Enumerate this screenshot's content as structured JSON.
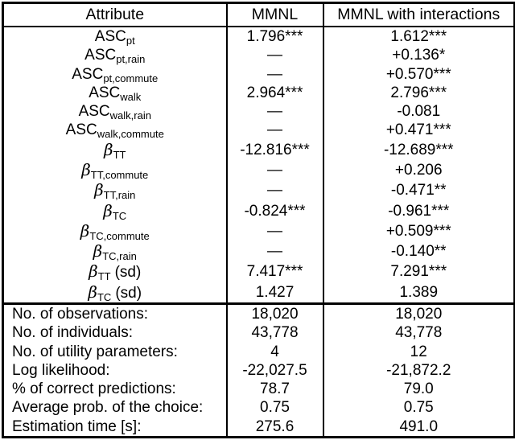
{
  "table": {
    "columns": [
      "Attribute",
      "MMNL",
      "MMNL with interactions"
    ],
    "parameters": [
      {
        "base": "ASC",
        "sub": "pt",
        "suffix": "",
        "mmnl": "1.796***",
        "mmnl_interactions": "1.612***"
      },
      {
        "base": "ASC",
        "sub": "pt,rain",
        "suffix": "",
        "mmnl": "—",
        "mmnl_interactions": "+0.136*"
      },
      {
        "base": "ASC",
        "sub": "pt,commute",
        "suffix": "",
        "mmnl": "—",
        "mmnl_interactions": "+0.570***"
      },
      {
        "base": "ASC",
        "sub": "walk",
        "suffix": "",
        "mmnl": "2.964***",
        "mmnl_interactions": "2.796***"
      },
      {
        "base": "ASC",
        "sub": "walk,rain",
        "suffix": "",
        "mmnl": "—",
        "mmnl_interactions": "-0.081"
      },
      {
        "base": "ASC",
        "sub": "walk,commute",
        "suffix": "",
        "mmnl": "—",
        "mmnl_interactions": "+0.471***"
      },
      {
        "base": "β",
        "sub": "TT",
        "suffix": "",
        "mmnl": "-12.816***",
        "mmnl_interactions": "-12.689***"
      },
      {
        "base": "β",
        "sub": "TT,commute",
        "suffix": "",
        "mmnl": "—",
        "mmnl_interactions": "+0.206"
      },
      {
        "base": "β",
        "sub": "TT,rain",
        "suffix": "",
        "mmnl": "—",
        "mmnl_interactions": "-0.471**"
      },
      {
        "base": "β",
        "sub": "TC",
        "suffix": "",
        "mmnl": "-0.824***",
        "mmnl_interactions": "-0.961***"
      },
      {
        "base": "β",
        "sub": "TC,commute",
        "suffix": "",
        "mmnl": "—",
        "mmnl_interactions": "+0.509***"
      },
      {
        "base": "β",
        "sub": "TC,rain",
        "suffix": "",
        "mmnl": "—",
        "mmnl_interactions": "-0.140**"
      },
      {
        "base": "β",
        "sub": "TT",
        "suffix": "(sd)",
        "mmnl": "7.417***",
        "mmnl_interactions": "7.291***"
      },
      {
        "base": "β",
        "sub": "TC",
        "suffix": "(sd)",
        "mmnl": "1.427",
        "mmnl_interactions": "1.389"
      }
    ],
    "statistics": [
      {
        "label": "No. of observations:",
        "mmnl": "18,020",
        "mmnl_interactions": "18,020"
      },
      {
        "label": "No. of individuals:",
        "mmnl": "43,778",
        "mmnl_interactions": "43,778"
      },
      {
        "label": "No. of utility parameters:",
        "mmnl": "4",
        "mmnl_interactions": "12"
      },
      {
        "label": "Log likelihood:",
        "mmnl": "-22,027.5",
        "mmnl_interactions": "-21,872.2"
      },
      {
        "label": "% of correct predictions:",
        "mmnl": "78.7",
        "mmnl_interactions": "79.0"
      },
      {
        "label": "Average prob. of the choice:",
        "mmnl": "0.75",
        "mmnl_interactions": "0.75"
      },
      {
        "label": "Estimation time [s]:",
        "mmnl": "275.6",
        "mmnl_interactions": "491.0"
      }
    ]
  }
}
